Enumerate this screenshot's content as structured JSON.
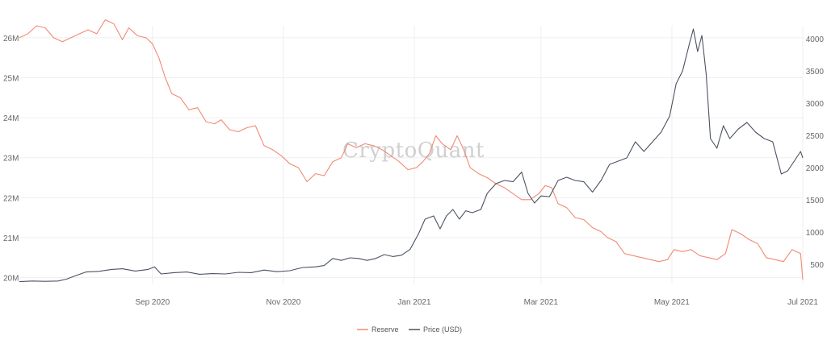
{
  "watermark": "CryptoQuant",
  "colors": {
    "reserve": "#f08a74",
    "price": "#4a5261",
    "grid": "#efefef",
    "tick": "#666666",
    "watermark": "#c8c8c8"
  },
  "chart_data": {
    "type": "line",
    "title": "",
    "legend_position": "bottom-center",
    "grid": true,
    "x_axis": {
      "range": [
        "2020-07-01",
        "2021-07-01"
      ],
      "ticks": [
        {
          "date": "2020-09-01",
          "label": "Sep 2020"
        },
        {
          "date": "2020-11-01",
          "label": "Nov 2020"
        },
        {
          "date": "2021-01-01",
          "label": "Jan 2021"
        },
        {
          "date": "2021-03-01",
          "label": "Mar 2021"
        },
        {
          "date": "2021-05-01",
          "label": "May 2021"
        },
        {
          "date": "2021-07-01",
          "label": "Jul 2021"
        }
      ]
    },
    "y_axis_left": {
      "range": [
        19.85,
        26.3
      ],
      "unit": "M",
      "ticks": [
        {
          "value": 20,
          "label": "20M"
        },
        {
          "value": 21,
          "label": "21M"
        },
        {
          "value": 22,
          "label": "22M"
        },
        {
          "value": 23,
          "label": "23M"
        },
        {
          "value": 24,
          "label": "24M"
        },
        {
          "value": 25,
          "label": "25M"
        },
        {
          "value": 26,
          "label": "26M"
        }
      ]
    },
    "y_axis_right": {
      "range": [
        200,
        4200
      ],
      "ticks": [
        {
          "value": 500,
          "label": "500"
        },
        {
          "value": 1000,
          "label": "1000"
        },
        {
          "value": 1500,
          "label": "1500"
        },
        {
          "value": 2000,
          "label": "2000"
        },
        {
          "value": 2500,
          "label": "2500"
        },
        {
          "value": 3000,
          "label": "3000"
        },
        {
          "value": 3500,
          "label": "3500"
        },
        {
          "value": 4000,
          "label": "4000"
        }
      ]
    },
    "series": [
      {
        "name": "Reserve",
        "axis": "left",
        "points": [
          [
            "2020-07-01",
            26.0
          ],
          [
            "2020-07-05",
            26.1
          ],
          [
            "2020-07-09",
            26.3
          ],
          [
            "2020-07-13",
            26.25
          ],
          [
            "2020-07-17",
            26.0
          ],
          [
            "2020-07-21",
            25.9
          ],
          [
            "2020-07-25",
            26.0
          ],
          [
            "2020-07-29",
            26.1
          ],
          [
            "2020-08-02",
            26.2
          ],
          [
            "2020-08-06",
            26.1
          ],
          [
            "2020-08-10",
            26.45
          ],
          [
            "2020-08-14",
            26.35
          ],
          [
            "2020-08-18",
            25.95
          ],
          [
            "2020-08-21",
            26.25
          ],
          [
            "2020-08-25",
            26.05
          ],
          [
            "2020-08-29",
            26.0
          ],
          [
            "2020-09-01",
            25.85
          ],
          [
            "2020-09-04",
            25.5
          ],
          [
            "2020-09-07",
            25.0
          ],
          [
            "2020-09-10",
            24.6
          ],
          [
            "2020-09-14",
            24.5
          ],
          [
            "2020-09-18",
            24.2
          ],
          [
            "2020-09-22",
            24.25
          ],
          [
            "2020-09-26",
            23.9
          ],
          [
            "2020-09-30",
            23.85
          ],
          [
            "2020-10-03",
            23.95
          ],
          [
            "2020-10-07",
            23.7
          ],
          [
            "2020-10-11",
            23.65
          ],
          [
            "2020-10-15",
            23.75
          ],
          [
            "2020-10-19",
            23.8
          ],
          [
            "2020-10-23",
            23.3
          ],
          [
            "2020-10-27",
            23.2
          ],
          [
            "2020-10-31",
            23.05
          ],
          [
            "2020-11-04",
            22.85
          ],
          [
            "2020-11-08",
            22.75
          ],
          [
            "2020-11-12",
            22.4
          ],
          [
            "2020-11-16",
            22.6
          ],
          [
            "2020-11-20",
            22.55
          ],
          [
            "2020-11-24",
            22.9
          ],
          [
            "2020-11-28",
            23.0
          ],
          [
            "2020-12-01",
            23.35
          ],
          [
            "2020-12-05",
            23.25
          ],
          [
            "2020-12-09",
            23.35
          ],
          [
            "2020-12-13",
            23.3
          ],
          [
            "2020-12-17",
            23.2
          ],
          [
            "2020-12-21",
            23.05
          ],
          [
            "2020-12-25",
            22.9
          ],
          [
            "2020-12-29",
            22.7
          ],
          [
            "2021-01-02",
            22.75
          ],
          [
            "2021-01-05",
            22.9
          ],
          [
            "2021-01-08",
            23.1
          ],
          [
            "2021-01-11",
            23.55
          ],
          [
            "2021-01-14",
            23.35
          ],
          [
            "2021-01-18",
            23.2
          ],
          [
            "2021-01-21",
            23.55
          ],
          [
            "2021-01-24",
            23.2
          ],
          [
            "2021-01-27",
            22.75
          ],
          [
            "2021-01-31",
            22.6
          ],
          [
            "2021-02-04",
            22.5
          ],
          [
            "2021-02-08",
            22.35
          ],
          [
            "2021-02-12",
            22.25
          ],
          [
            "2021-02-16",
            22.1
          ],
          [
            "2021-02-20",
            21.95
          ],
          [
            "2021-02-24",
            21.95
          ],
          [
            "2021-02-28",
            22.1
          ],
          [
            "2021-03-03",
            22.3
          ],
          [
            "2021-03-06",
            22.25
          ],
          [
            "2021-03-09",
            21.85
          ],
          [
            "2021-03-13",
            21.75
          ],
          [
            "2021-03-17",
            21.5
          ],
          [
            "2021-03-21",
            21.45
          ],
          [
            "2021-03-25",
            21.25
          ],
          [
            "2021-03-29",
            21.15
          ],
          [
            "2021-04-01",
            21.0
          ],
          [
            "2021-04-05",
            20.9
          ],
          [
            "2021-04-09",
            20.6
          ],
          [
            "2021-04-13",
            20.55
          ],
          [
            "2021-04-17",
            20.5
          ],
          [
            "2021-04-21",
            20.45
          ],
          [
            "2021-04-25",
            20.4
          ],
          [
            "2021-04-29",
            20.45
          ],
          [
            "2021-05-02",
            20.7
          ],
          [
            "2021-05-06",
            20.65
          ],
          [
            "2021-05-10",
            20.7
          ],
          [
            "2021-05-14",
            20.55
          ],
          [
            "2021-05-18",
            20.5
          ],
          [
            "2021-05-22",
            20.45
          ],
          [
            "2021-05-26",
            20.6
          ],
          [
            "2021-05-29",
            21.2
          ],
          [
            "2021-06-02",
            21.1
          ],
          [
            "2021-06-06",
            20.95
          ],
          [
            "2021-06-10",
            20.85
          ],
          [
            "2021-06-14",
            20.5
          ],
          [
            "2021-06-18",
            20.45
          ],
          [
            "2021-06-22",
            20.4
          ],
          [
            "2021-06-26",
            20.7
          ],
          [
            "2021-06-30",
            20.6
          ],
          [
            "2021-07-01",
            19.95
          ]
        ]
      },
      {
        "name": "Price (USD)",
        "axis": "right",
        "points": [
          [
            "2020-07-01",
            230
          ],
          [
            "2020-07-07",
            240
          ],
          [
            "2020-07-13",
            235
          ],
          [
            "2020-07-19",
            240
          ],
          [
            "2020-07-23",
            270
          ],
          [
            "2020-07-27",
            320
          ],
          [
            "2020-08-01",
            380
          ],
          [
            "2020-08-07",
            390
          ],
          [
            "2020-08-13",
            420
          ],
          [
            "2020-08-18",
            430
          ],
          [
            "2020-08-24",
            395
          ],
          [
            "2020-08-30",
            420
          ],
          [
            "2020-09-02",
            460
          ],
          [
            "2020-09-05",
            350
          ],
          [
            "2020-09-11",
            370
          ],
          [
            "2020-09-17",
            380
          ],
          [
            "2020-09-23",
            345
          ],
          [
            "2020-09-29",
            355
          ],
          [
            "2020-10-05",
            350
          ],
          [
            "2020-10-11",
            375
          ],
          [
            "2020-10-17",
            370
          ],
          [
            "2020-10-23",
            410
          ],
          [
            "2020-10-29",
            385
          ],
          [
            "2020-11-04",
            400
          ],
          [
            "2020-11-10",
            450
          ],
          [
            "2020-11-16",
            460
          ],
          [
            "2020-11-20",
            480
          ],
          [
            "2020-11-24",
            590
          ],
          [
            "2020-11-28",
            560
          ],
          [
            "2020-12-02",
            600
          ],
          [
            "2020-12-06",
            590
          ],
          [
            "2020-12-10",
            560
          ],
          [
            "2020-12-14",
            590
          ],
          [
            "2020-12-18",
            650
          ],
          [
            "2020-12-22",
            620
          ],
          [
            "2020-12-26",
            640
          ],
          [
            "2020-12-30",
            730
          ],
          [
            "2021-01-03",
            975
          ],
          [
            "2021-01-06",
            1200
          ],
          [
            "2021-01-10",
            1250
          ],
          [
            "2021-01-13",
            1050
          ],
          [
            "2021-01-16",
            1250
          ],
          [
            "2021-01-19",
            1350
          ],
          [
            "2021-01-22",
            1200
          ],
          [
            "2021-01-25",
            1330
          ],
          [
            "2021-01-28",
            1300
          ],
          [
            "2021-02-01",
            1350
          ],
          [
            "2021-02-04",
            1600
          ],
          [
            "2021-02-08",
            1750
          ],
          [
            "2021-02-12",
            1800
          ],
          [
            "2021-02-16",
            1780
          ],
          [
            "2021-02-20",
            1930
          ],
          [
            "2021-02-23",
            1600
          ],
          [
            "2021-02-26",
            1450
          ],
          [
            "2021-03-01",
            1560
          ],
          [
            "2021-03-05",
            1550
          ],
          [
            "2021-03-09",
            1800
          ],
          [
            "2021-03-13",
            1850
          ],
          [
            "2021-03-17",
            1800
          ],
          [
            "2021-03-21",
            1780
          ],
          [
            "2021-03-25",
            1620
          ],
          [
            "2021-03-29",
            1800
          ],
          [
            "2021-04-02",
            2050
          ],
          [
            "2021-04-06",
            2100
          ],
          [
            "2021-04-10",
            2150
          ],
          [
            "2021-04-14",
            2400
          ],
          [
            "2021-04-18",
            2250
          ],
          [
            "2021-04-22",
            2400
          ],
          [
            "2021-04-26",
            2550
          ],
          [
            "2021-04-30",
            2800
          ],
          [
            "2021-05-03",
            3300
          ],
          [
            "2021-05-06",
            3500
          ],
          [
            "2021-05-09",
            3900
          ],
          [
            "2021-05-11",
            4150
          ],
          [
            "2021-05-13",
            3800
          ],
          [
            "2021-05-15",
            4050
          ],
          [
            "2021-05-17",
            3450
          ],
          [
            "2021-05-19",
            2450
          ],
          [
            "2021-05-22",
            2300
          ],
          [
            "2021-05-25",
            2650
          ],
          [
            "2021-05-28",
            2450
          ],
          [
            "2021-06-01",
            2600
          ],
          [
            "2021-06-05",
            2700
          ],
          [
            "2021-06-09",
            2550
          ],
          [
            "2021-06-13",
            2450
          ],
          [
            "2021-06-17",
            2400
          ],
          [
            "2021-06-21",
            1900
          ],
          [
            "2021-06-24",
            1950
          ],
          [
            "2021-06-27",
            2100
          ],
          [
            "2021-06-30",
            2250
          ],
          [
            "2021-07-01",
            2150
          ]
        ]
      }
    ]
  }
}
